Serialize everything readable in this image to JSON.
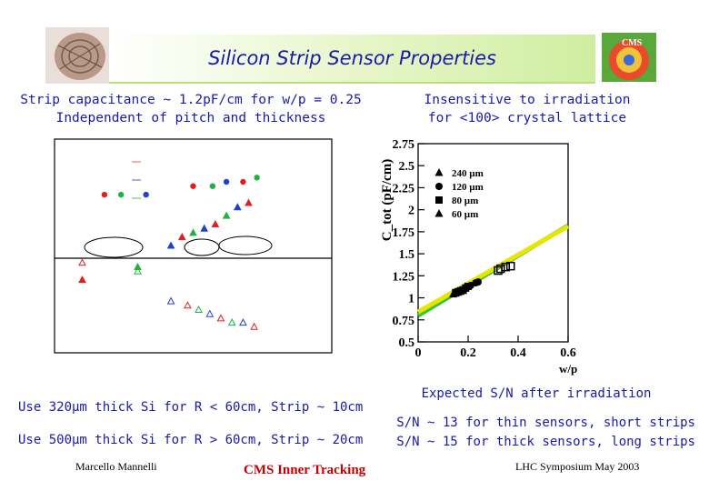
{
  "slide": {
    "title": "Silicon Strip Sensor Properties",
    "left_header": [
      "Strip capacitance ~ 1.2pF/cm for w/p = 0.25",
      "Independent of pitch and thickness"
    ],
    "right_header": [
      "Insensitive to irradiation",
      "for <100> crystal lattice"
    ],
    "bullets_left": [
      "Use 320µm thick Si for R < 60cm, Strip ~ 10cm",
      "Use 500µm thick Si for R > 60cm, Strip ~ 20cm"
    ],
    "right_caption": "Expected S/N after irradiation",
    "right_notes": [
      "S/N ~ 13 for thin sensors, short strips",
      "S/N ~ 15 for thick sensors, long strips"
    ],
    "footer": {
      "left": "Marcello Mannelli",
      "center": "CMS Inner Tracking",
      "right": "LHC Symposium May 2003"
    },
    "logo_right_label": "CMS",
    "colors": {
      "title_blue": "#1a1aa8",
      "footer_red": "#c00000",
      "title_bar_green": "#cfeea0"
    }
  },
  "chart_data": [
    {
      "type": "scatter",
      "title": "",
      "xlabel": "",
      "ylabel": "",
      "legend_position": "top-left",
      "series": [
        {
          "marker": "circle",
          "points": [
            [
              0.18,
              1.02
            ],
            [
              0.24,
              1.02
            ],
            [
              0.33,
              1.02
            ],
            [
              0.5,
              1.04
            ],
            [
              0.57,
              1.04
            ],
            [
              0.62,
              1.05
            ],
            [
              0.68,
              1.05
            ],
            [
              0.73,
              1.06
            ]
          ]
        },
        {
          "marker": "triangle-filled",
          "points": [
            [
              0.1,
              0.82
            ],
            [
              0.3,
              0.85
            ],
            [
              0.42,
              0.9
            ],
            [
              0.46,
              0.92
            ],
            [
              0.5,
              0.93
            ],
            [
              0.54,
              0.94
            ],
            [
              0.58,
              0.95
            ],
            [
              0.62,
              0.97
            ],
            [
              0.66,
              0.99
            ],
            [
              0.7,
              1.0
            ]
          ]
        },
        {
          "marker": "triangle-open",
          "points": [
            [
              0.1,
              0.86
            ],
            [
              0.3,
              0.84
            ],
            [
              0.42,
              0.77
            ],
            [
              0.48,
              0.76
            ],
            [
              0.52,
              0.75
            ],
            [
              0.56,
              0.74
            ],
            [
              0.6,
              0.73
            ],
            [
              0.64,
              0.72
            ],
            [
              0.68,
              0.72
            ],
            [
              0.72,
              0.71
            ]
          ]
        }
      ]
    },
    {
      "type": "scatter",
      "title": "",
      "xlabel": "w/p",
      "ylabel": "C_tot (pF/cm)",
      "xlim": [
        0,
        0.6
      ],
      "ylim": [
        0.5,
        2.75
      ],
      "x_ticks": [
        "0",
        "0.2",
        "0.4",
        "0.6"
      ],
      "y_ticks": [
        "0.5",
        "0.75",
        "1",
        "1.25",
        "1.5",
        "1.75",
        "2",
        "2.25",
        "2.5",
        "2.75"
      ],
      "legend_position": "top-left",
      "legend_entries": [
        "240 µm",
        "120 µm",
        "80 µm",
        "60 µm"
      ],
      "series": [
        {
          "name": "240 µm",
          "points": [
            [
              0.32,
              1.31
            ],
            [
              0.33,
              1.33
            ],
            [
              0.35,
              1.35
            ],
            [
              0.37,
              1.36
            ]
          ]
        },
        {
          "name": "120 µm",
          "points": [
            [
              0.19,
              1.12
            ],
            [
              0.2,
              1.13
            ],
            [
              0.21,
              1.14
            ],
            [
              0.23,
              1.17
            ],
            [
              0.24,
              1.18
            ]
          ]
        },
        {
          "name": "80 µm",
          "points": [
            [
              0.15,
              1.06
            ],
            [
              0.16,
              1.07
            ],
            [
              0.17,
              1.08
            ],
            [
              0.18,
              1.09
            ],
            [
              0.19,
              1.11
            ],
            [
              0.2,
              1.13
            ]
          ]
        },
        {
          "name": "60 µm",
          "points": [
            [
              0.14,
              1.04
            ],
            [
              0.15,
              1.05
            ],
            [
              0.16,
              1.06
            ],
            [
              0.17,
              1.07
            ],
            [
              0.18,
              1.08
            ]
          ]
        }
      ],
      "fits": [
        {
          "intercept": 0.8,
          "slope": 1.7,
          "color": "#3cc23c"
        },
        {
          "intercept": 0.84,
          "slope": 1.62,
          "color": "#e6e600"
        }
      ]
    }
  ]
}
